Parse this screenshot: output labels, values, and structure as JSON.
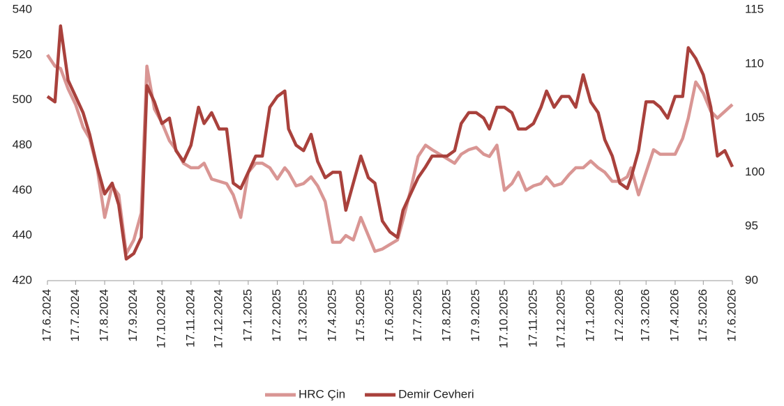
{
  "chart_data": {
    "type": "line",
    "x": [
      "17.6.2024",
      "25.6.2024",
      "1.7.2024",
      "9.7.2024",
      "17.7.2024",
      "25.7.2024",
      "1.8.2024",
      "9.8.2024",
      "17.8.2024",
      "25.8.2024",
      "1.9.2024",
      "9.9.2024",
      "17.9.2024",
      "25.9.2024",
      "1.10.2024",
      "9.10.2024",
      "17.10.2024",
      "25.10.2024",
      "1.11.2024",
      "9.11.2024",
      "17.11.2024",
      "25.11.2024",
      "1.12.2024",
      "9.12.2024",
      "17.12.2024",
      "25.12.2024",
      "1.1.2025",
      "9.1.2025",
      "17.1.2025",
      "25.1.2025",
      "1.2.2025",
      "9.2.2025",
      "17.2.2025",
      "25.2.2025",
      "1.3.2025",
      "9.3.2025",
      "17.3.2025",
      "25.3.2025",
      "1.4.2025",
      "9.4.2025",
      "17.4.2025",
      "25.4.2025",
      "1.5.2025",
      "9.5.2025",
      "17.5.2025",
      "25.5.2025",
      "1.6.2025",
      "9.6.2025",
      "17.6.2025",
      "25.6.2025",
      "1.7.2025",
      "9.7.2025",
      "17.7.2025",
      "25.7.2025",
      "1.8.2025",
      "9.8.2025",
      "17.8.2025",
      "25.8.2025",
      "1.9.2025",
      "9.9.2025",
      "17.9.2025",
      "25.9.2025",
      "1.10.2025",
      "9.10.2025",
      "17.10.2025",
      "25.10.2025",
      "1.11.2025",
      "9.11.2025",
      "17.11.2025",
      "25.11.2025",
      "1.12.2025",
      "9.12.2025",
      "17.12.2025",
      "25.12.2025",
      "1.1.2026",
      "9.1.2026",
      "17.1.2026",
      "25.1.2026",
      "1.2.2026",
      "9.2.2026",
      "17.2.2026",
      "25.2.2026",
      "1.3.2026",
      "9.3.2026",
      "17.3.2026",
      "25.3.2026",
      "1.4.2026",
      "9.4.2026",
      "17.4.2026",
      "25.4.2026",
      "1.5.2026",
      "9.5.2026",
      "17.5.2026",
      "25.5.2026",
      "1.6.2026",
      "9.6.2026",
      "17.6.2026"
    ],
    "xlim": [
      "17.6.2024",
      "17.6.2026"
    ],
    "xticks": [
      "17.6.2024",
      "17.7.2024",
      "17.8.2024",
      "17.9.2024",
      "17.10.2024",
      "17.11.2024",
      "17.12.2024",
      "17.1.2025",
      "17.2.2025",
      "17.3.2025",
      "17.4.2025",
      "17.5.2025",
      "17.6.2025",
      "17.7.2025",
      "17.8.2025",
      "17.9.2025",
      "17.10.2025",
      "17.11.2025",
      "17.12.2025",
      "17.1.2026",
      "17.2.2026",
      "17.3.2026",
      "17.4.2026",
      "17.5.2026",
      "17.6.2026"
    ],
    "ylim": [
      420,
      540
    ],
    "yticks": [
      420,
      440,
      460,
      480,
      500,
      520,
      540
    ],
    "y2lim": [
      90,
      115
    ],
    "y2ticks": [
      90,
      95,
      100,
      105,
      110,
      115
    ],
    "legend": "bottom",
    "series": [
      {
        "name": "HRC Çin",
        "color": "#d99694",
        "values": [
          520,
          515,
          514,
          505,
          498,
          488,
          483,
          470,
          448,
          462,
          458,
          432,
          438,
          450,
          515,
          496,
          490,
          482,
          478,
          472,
          470,
          470,
          472,
          465,
          464,
          463,
          458,
          448,
          468,
          472,
          472,
          470,
          465,
          470,
          468,
          462,
          463,
          466,
          462,
          455,
          437,
          437,
          440,
          438,
          448,
          440,
          433,
          434,
          436,
          438,
          447,
          460,
          475,
          480,
          478,
          476,
          474,
          472,
          476,
          478,
          479,
          476,
          475,
          480,
          460,
          463,
          468,
          460,
          462,
          463,
          466,
          462,
          463,
          467,
          470,
          470,
          473,
          470,
          468,
          464,
          464,
          466,
          470,
          458,
          468,
          478,
          476,
          476,
          476,
          483,
          492,
          508,
          503,
          495,
          492,
          495,
          498
        ]
      },
      {
        "name": "Demir Cevheri",
        "color": "#a9413c",
        "axis": "y2",
        "values": [
          107,
          106.5,
          113.5,
          108.5,
          107,
          105.5,
          103.5,
          100.5,
          98,
          99,
          97,
          92,
          92.5,
          94,
          108,
          106.5,
          104.5,
          105,
          102,
          101,
          102.5,
          106,
          104.5,
          105.5,
          104,
          104,
          99,
          98.5,
          100,
          101.5,
          101.5,
          106,
          107,
          107.5,
          104,
          102.5,
          102,
          103.5,
          101,
          99.5,
          100,
          100,
          96.5,
          99,
          101.5,
          99.5,
          99,
          95.5,
          94.5,
          94,
          96.5,
          98,
          99.5,
          100.5,
          101.5,
          101.5,
          101.5,
          102,
          104.5,
          105.5,
          105.5,
          105,
          104,
          106,
          106,
          105.5,
          104,
          104,
          104.5,
          106,
          107.5,
          106,
          107,
          107,
          106,
          109,
          106.5,
          105.5,
          103,
          101.5,
          99,
          98.5,
          99.5,
          102,
          106.5,
          106.5,
          106,
          105,
          107,
          107,
          111.5,
          110.5,
          109,
          106,
          101.5,
          102,
          100.5
        ]
      }
    ]
  }
}
